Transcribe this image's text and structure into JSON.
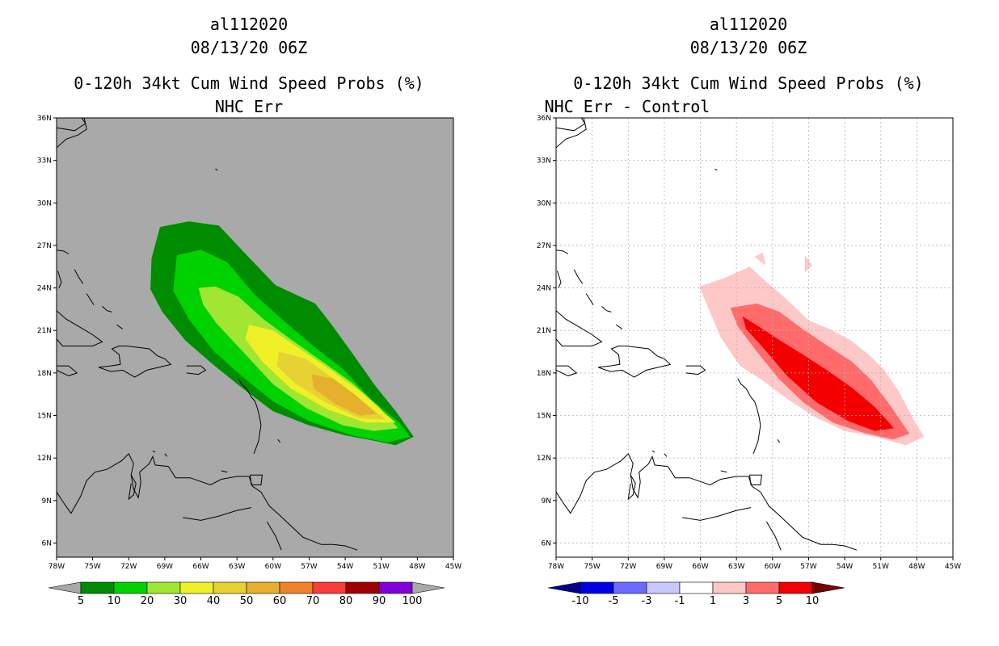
{
  "chart_data": [
    {
      "type": "map-contour",
      "storm_id": "al112020",
      "datetime": "08/13/20 06Z",
      "title": "0-120h 34kt Cum Wind Speed Probs (%)",
      "subtitle": "NHC Err",
      "background": "#a9a9a9",
      "lon_labels": [
        "78W",
        "75W",
        "72W",
        "69W",
        "66W",
        "63W",
        "60W",
        "57W",
        "54W",
        "51W",
        "48W",
        "45W"
      ],
      "lat_labels": [
        "6N",
        "9N",
        "12N",
        "15N",
        "18N",
        "21N",
        "24N",
        "27N",
        "30N",
        "33N",
        "36N"
      ],
      "lon_range": [
        -78,
        -45
      ],
      "lat_range": [
        5,
        36
      ],
      "grid": false,
      "colorbar": {
        "labels": [
          "5",
          "10",
          "20",
          "30",
          "40",
          "50",
          "60",
          "70",
          "80",
          "90",
          "100"
        ],
        "colors": [
          "#008c00",
          "#00d200",
          "#a0e632",
          "#f0f028",
          "#e6d232",
          "#e6af2d",
          "#f08228",
          "#fa3c3c",
          "#a00000",
          "#8200dc"
        ],
        "under_color": "#a9a9a9",
        "over_color": "#a9a9a9"
      },
      "levels": [
        {
          "min": 5,
          "color": "#008c00"
        },
        {
          "min": 10,
          "color": "#00d200"
        },
        {
          "min": 20,
          "color": "#a0e632"
        },
        {
          "min": 30,
          "color": "#f0f028"
        },
        {
          "min": 40,
          "color": "#e6d232"
        },
        {
          "min": 50,
          "color": "#e6af2d"
        }
      ]
    },
    {
      "type": "map-contour",
      "storm_id": "al112020",
      "datetime": "08/13/20 06Z",
      "title": "0-120h 34kt Cum Wind Speed Probs (%)",
      "subtitle": "NHC Err - Control",
      "background": "#ffffff",
      "lon_labels": [
        "78W",
        "75W",
        "72W",
        "69W",
        "66W",
        "63W",
        "60W",
        "57W",
        "54W",
        "51W",
        "48W",
        "45W"
      ],
      "lat_labels": [
        "6N",
        "9N",
        "12N",
        "15N",
        "18N",
        "21N",
        "24N",
        "27N",
        "30N",
        "33N",
        "36N"
      ],
      "lon_range": [
        -78,
        -45
      ],
      "lat_range": [
        5,
        36
      ],
      "grid": true,
      "colorbar": {
        "labels": [
          "-10",
          "-5",
          "-3",
          "-1",
          "1",
          "3",
          "5",
          "10"
        ],
        "colors": [
          "#0000e6",
          "#6b6bff",
          "#c8c8ff",
          "#ffffff",
          "#ffc8c8",
          "#ff6b6b",
          "#f50000"
        ],
        "under_color": "#00008c",
        "over_color": "#780000"
      },
      "levels": [
        {
          "min": 1,
          "color": "#ffc8c8"
        },
        {
          "min": 3,
          "color": "#ff6b6b"
        },
        {
          "min": 5,
          "color": "#f50000"
        }
      ]
    }
  ]
}
